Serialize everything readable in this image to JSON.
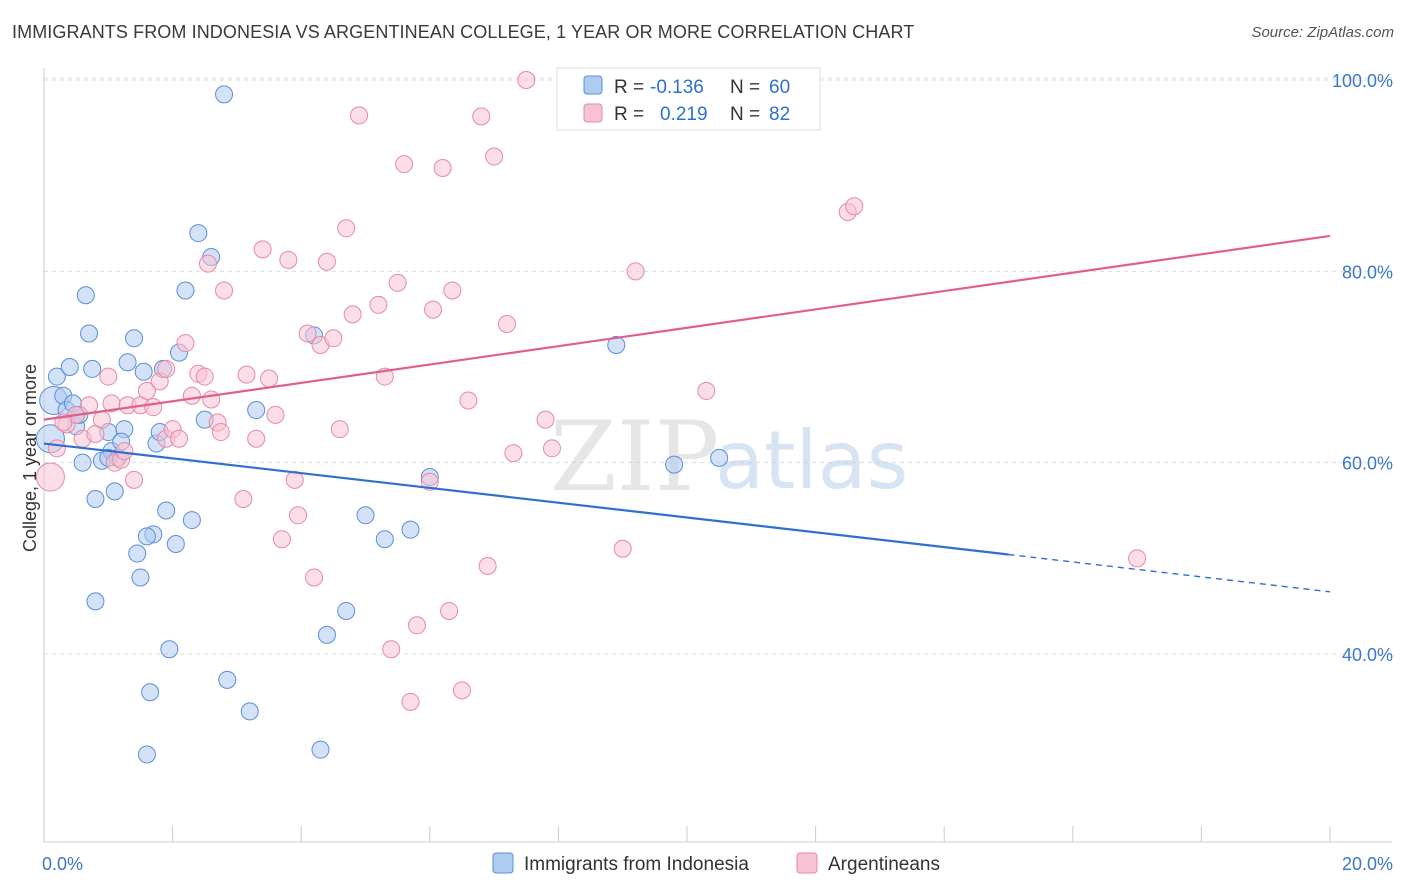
{
  "title": "IMMIGRANTS FROM INDONESIA VS ARGENTINEAN COLLEGE, 1 YEAR OR MORE CORRELATION CHART",
  "source": "Source: ZipAtlas.com",
  "watermark": {
    "zip": "ZIP",
    "atlas": "atlas"
  },
  "colors": {
    "blue_fill": "#aecbf0",
    "blue_stroke": "#5b8fd6",
    "blue_line": "#2f6fd0",
    "pink_fill": "#f7c3d3",
    "pink_stroke": "#e68aa8",
    "pink_line": "#e0608c",
    "grid": "#dddddd",
    "axis_label": "#3a78c9"
  },
  "legend": {
    "rows": [
      {
        "r_label": "R =",
        "r_value": "-0.136",
        "n_label": "N =",
        "n_value": "60"
      },
      {
        "r_label": "R =",
        "r_value": "0.219",
        "n_label": "N =",
        "n_value": "82"
      }
    ]
  },
  "chart_data": {
    "type": "scatter",
    "ylabel": "College, 1 year or more",
    "xlim": [
      0,
      20
    ],
    "ylim": [
      22,
      103
    ],
    "x_tick_labels": [
      "0.0%",
      "20.0%"
    ],
    "y_ticks": [
      40,
      60,
      80,
      100
    ],
    "y_tick_labels": [
      "40.0%",
      "60.0%",
      "80.0%",
      "100.0%"
    ],
    "grid": true,
    "legend_position": "top-center",
    "series": [
      {
        "name": "Immigrants from Indonesia",
        "color": "blue",
        "trend": {
          "x": [
            0.0,
            15.0
          ],
          "y": [
            62.0,
            50.4
          ],
          "dashed_to": [
            20.0,
            46.5
          ]
        },
        "points": [
          [
            0.1,
            62.5
          ],
          [
            0.15,
            66.5
          ],
          [
            0.2,
            69
          ],
          [
            0.3,
            67
          ],
          [
            0.35,
            65.5
          ],
          [
            0.4,
            70
          ],
          [
            0.45,
            66.2
          ],
          [
            0.5,
            63.8
          ],
          [
            0.55,
            65
          ],
          [
            0.6,
            60
          ],
          [
            0.65,
            77.5
          ],
          [
            0.7,
            73.5
          ],
          [
            0.75,
            69.8
          ],
          [
            0.8,
            56.2
          ],
          [
            0.9,
            60.2
          ],
          [
            1.0,
            63.2
          ],
          [
            1.05,
            61.2
          ],
          [
            1.1,
            57
          ],
          [
            1.15,
            60.5
          ],
          [
            1.25,
            63.5
          ],
          [
            1.3,
            70.5
          ],
          [
            1.4,
            73
          ],
          [
            1.45,
            50.5
          ],
          [
            1.5,
            48
          ],
          [
            1.55,
            69.5
          ],
          [
            1.65,
            36
          ],
          [
            1.7,
            52.5
          ],
          [
            1.75,
            62
          ],
          [
            1.8,
            63.2
          ],
          [
            1.85,
            69.8
          ],
          [
            1.9,
            55
          ],
          [
            1.95,
            40.5
          ],
          [
            2.05,
            51.5
          ],
          [
            2.1,
            71.5
          ],
          [
            2.2,
            78
          ],
          [
            2.3,
            54
          ],
          [
            2.4,
            84
          ],
          [
            2.5,
            64.5
          ],
          [
            2.6,
            81.5
          ],
          [
            2.8,
            98.5
          ],
          [
            2.85,
            37.3
          ],
          [
            3.2,
            34
          ],
          [
            3.3,
            65.5
          ],
          [
            4.2,
            73.3
          ],
          [
            4.3,
            30
          ],
          [
            4.4,
            42
          ],
          [
            4.7,
            44.5
          ],
          [
            5.0,
            54.5
          ],
          [
            5.3,
            52
          ],
          [
            5.7,
            53
          ],
          [
            6.0,
            58.5
          ],
          [
            8.9,
            72.3
          ],
          [
            9.8,
            59.8
          ],
          [
            10.5,
            60.5
          ],
          [
            1.6,
            29.5
          ],
          [
            1.0,
            60.5
          ],
          [
            0.5,
            65
          ],
          [
            1.2,
            62.2
          ],
          [
            0.8,
            45.5
          ],
          [
            1.6,
            52.3
          ]
        ]
      },
      {
        "name": "Argentineans",
        "color": "pink",
        "trend": {
          "x": [
            0.0,
            20.0
          ],
          "y": [
            64.5,
            83.7
          ]
        },
        "points": [
          [
            0.1,
            58.5
          ],
          [
            0.2,
            61.5
          ],
          [
            0.35,
            64
          ],
          [
            0.5,
            65
          ],
          [
            0.6,
            62.5
          ],
          [
            0.7,
            66
          ],
          [
            0.8,
            63
          ],
          [
            0.9,
            64.5
          ],
          [
            1.0,
            69
          ],
          [
            1.05,
            66.2
          ],
          [
            1.1,
            60
          ],
          [
            1.2,
            60.3
          ],
          [
            1.3,
            66
          ],
          [
            1.4,
            58.2
          ],
          [
            1.5,
            66
          ],
          [
            1.6,
            67.5
          ],
          [
            1.7,
            65.8
          ],
          [
            1.8,
            68.5
          ],
          [
            1.9,
            62.5
          ],
          [
            2.0,
            63.5
          ],
          [
            2.1,
            62.5
          ],
          [
            2.2,
            72.5
          ],
          [
            2.3,
            67
          ],
          [
            2.4,
            69.3
          ],
          [
            2.5,
            69
          ],
          [
            2.55,
            80.8
          ],
          [
            2.6,
            66.6
          ],
          [
            2.7,
            64.2
          ],
          [
            2.75,
            63.2
          ],
          [
            2.8,
            78
          ],
          [
            3.1,
            56.2
          ],
          [
            3.15,
            69.2
          ],
          [
            3.3,
            62.5
          ],
          [
            3.4,
            82.3
          ],
          [
            3.5,
            68.8
          ],
          [
            3.6,
            65
          ],
          [
            3.7,
            52
          ],
          [
            3.8,
            81.2
          ],
          [
            3.95,
            54.5
          ],
          [
            4.1,
            73.5
          ],
          [
            4.2,
            48
          ],
          [
            4.3,
            72.3
          ],
          [
            4.4,
            81
          ],
          [
            4.5,
            73
          ],
          [
            4.6,
            63.5
          ],
          [
            4.7,
            84.5
          ],
          [
            4.8,
            75.5
          ],
          [
            4.9,
            96.3
          ],
          [
            5.2,
            76.5
          ],
          [
            5.3,
            69
          ],
          [
            5.4,
            40.5
          ],
          [
            5.5,
            78.8
          ],
          [
            5.6,
            91.2
          ],
          [
            5.7,
            35
          ],
          [
            5.8,
            43
          ],
          [
            6.0,
            58
          ],
          [
            6.05,
            76
          ],
          [
            6.2,
            90.8
          ],
          [
            6.3,
            44.5
          ],
          [
            6.35,
            78
          ],
          [
            6.5,
            36.2
          ],
          [
            6.6,
            66.5
          ],
          [
            6.8,
            96.2
          ],
          [
            6.9,
            49.2
          ],
          [
            7.0,
            92
          ],
          [
            7.2,
            74.5
          ],
          [
            7.3,
            61
          ],
          [
            7.5,
            100
          ],
          [
            7.8,
            64.5
          ],
          [
            7.9,
            61.5
          ],
          [
            8.3,
            97
          ],
          [
            9.0,
            51
          ],
          [
            9.2,
            80
          ],
          [
            10.3,
            67.5
          ],
          [
            12.5,
            86.2
          ],
          [
            12.6,
            86.8
          ],
          [
            17.0,
            50
          ],
          [
            0.3,
            64.2
          ],
          [
            1.9,
            69.8
          ],
          [
            3.9,
            58.2
          ],
          [
            8.6,
            100.1
          ],
          [
            1.25,
            61.2
          ]
        ]
      }
    ]
  }
}
